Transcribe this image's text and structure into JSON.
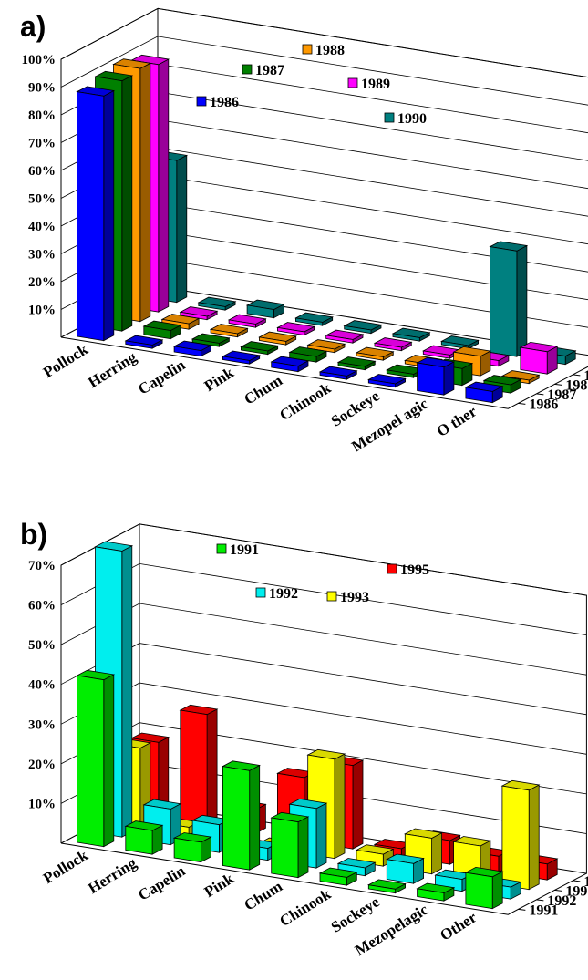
{
  "chart_data": [
    {
      "panel_label": "a)",
      "type": "bar",
      "categories": [
        "Pollock",
        "Herring",
        "Capelin",
        "Pink",
        "Chum",
        "Chinook",
        "Sockeye",
        "Mezopel agic",
        "O ther"
      ],
      "series": [
        {
          "name": "1986",
          "color": "#0000ff",
          "values": [
            88,
            1,
            2,
            1,
            2,
            1,
            1,
            10,
            4
          ]
        },
        {
          "name": "1987",
          "color": "#008000",
          "values": [
            90,
            3,
            1,
            1,
            2,
            1,
            1,
            6,
            3
          ]
        },
        {
          "name": "1988",
          "color": "#ff9900",
          "values": [
            91,
            2,
            1,
            1,
            1,
            1,
            1,
            7,
            1
          ]
        },
        {
          "name": "1989",
          "color": "#ff00ff",
          "values": [
            89,
            1,
            1,
            1,
            1,
            1,
            1,
            2,
            8
          ]
        },
        {
          "name": "1990",
          "color": "#008080",
          "values": [
            51,
            1,
            3,
            1,
            1,
            1,
            1,
            38,
            3
          ]
        }
      ],
      "y_ticks": [
        "10%",
        "20%",
        "30%",
        "40%",
        "50%",
        "60%",
        "70%",
        "80%",
        "90%",
        "100%"
      ],
      "ylim": [
        0,
        100
      ],
      "grid": true,
      "legend": [
        {
          "name": "1988",
          "color": "#ff9900"
        },
        {
          "name": "1987",
          "color": "#008000"
        },
        {
          "name": "1989",
          "color": "#ff00ff"
        },
        {
          "name": "1986",
          "color": "#0000ff"
        },
        {
          "name": "1990",
          "color": "#008080"
        }
      ]
    },
    {
      "panel_label": "b)",
      "type": "bar",
      "categories": [
        "Pollock",
        "Herring",
        "Capelin",
        "Pink",
        "Chum",
        "Chinook",
        "Sockeye",
        "Mezopelagic",
        "Other"
      ],
      "series": [
        {
          "name": "1991",
          "color": "#00ee00",
          "values": [
            42,
            6,
            5,
            25,
            14,
            2,
            1,
            2,
            8
          ]
        },
        {
          "name": "1992",
          "color": "#00eeee",
          "values": [
            72,
            9,
            7,
            3,
            15,
            2,
            5,
            3,
            3
          ]
        },
        {
          "name": "1993",
          "color": "#ffff00",
          "values": [
            20,
            2,
            0,
            0,
            25,
            3,
            9,
            9,
            25
          ]
        },
        {
          "name": "1995",
          "color": "#ff0000",
          "values": [
            19,
            28,
            6,
            16,
            21,
            2,
            6,
            4,
            4
          ]
        }
      ],
      "y_ticks": [
        "10%",
        "20%",
        "30%",
        "40%",
        "50%",
        "60%",
        "70%"
      ],
      "ylim": [
        0,
        70
      ],
      "grid": true,
      "legend": [
        {
          "name": "1991",
          "color": "#00ee00"
        },
        {
          "name": "1995",
          "color": "#ff0000"
        },
        {
          "name": "1992",
          "color": "#00eeee"
        },
        {
          "name": "1993",
          "color": "#ffff00"
        }
      ]
    }
  ]
}
